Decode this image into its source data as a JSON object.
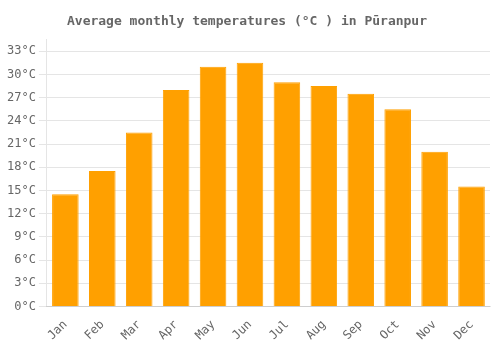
{
  "chart_data": {
    "type": "bar",
    "title": "Average monthly temperatures (°C ) in Pūranpur",
    "categories": [
      "Jan",
      "Feb",
      "Mar",
      "Apr",
      "May",
      "Jun",
      "Jul",
      "Aug",
      "Sep",
      "Oct",
      "Nov",
      "Dec"
    ],
    "values": [
      14.5,
      17.5,
      22.5,
      28,
      31,
      31.5,
      29,
      28.5,
      27.5,
      25.5,
      20,
      15.5
    ],
    "color": "#FFA000",
    "ylim": [
      0,
      34.5
    ],
    "yticks": [
      {
        "value": 0,
        "label": "0°C"
      },
      {
        "value": 3,
        "label": "3°C"
      },
      {
        "value": 6,
        "label": "6°C"
      },
      {
        "value": 9,
        "label": "9°C"
      },
      {
        "value": 12,
        "label": "12°C"
      },
      {
        "value": 15,
        "label": "15°C"
      },
      {
        "value": 18,
        "label": "18°C"
      },
      {
        "value": 21,
        "label": "21°C"
      },
      {
        "value": 24,
        "label": "24°C"
      },
      {
        "value": 27,
        "label": "27°C"
      },
      {
        "value": 30,
        "label": "30°C"
      },
      {
        "value": 33,
        "label": "33°C"
      }
    ],
    "grid": true
  }
}
